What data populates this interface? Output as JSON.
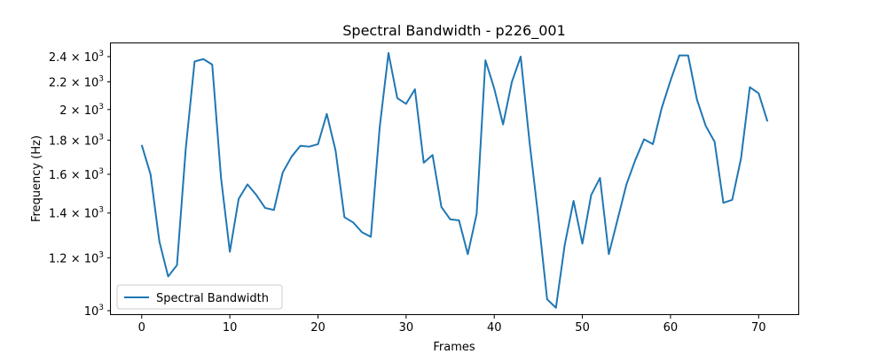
{
  "chart_data": {
    "type": "line",
    "title": "Spectral Bandwidth - p226_001",
    "xlabel": "Frames",
    "ylabel": "Frequency (Hz)",
    "xlim": [
      -3.5,
      74.5
    ],
    "ylim": [
      985,
      2520
    ],
    "yscale": "log",
    "grid": false,
    "legend_position": "lower-left",
    "x_ticks": [
      0,
      10,
      20,
      30,
      40,
      50,
      60,
      70
    ],
    "x_tick_labels": [
      "0",
      "10",
      "20",
      "30",
      "40",
      "50",
      "60",
      "70"
    ],
    "y_ticks": [
      1000,
      1200,
      1400,
      1600,
      1800,
      2000,
      2200,
      2400
    ],
    "y_tick_labels": [
      {
        "mant": "10",
        "exp": "3"
      },
      {
        "mant": "1.2 × 10",
        "exp": "3"
      },
      {
        "mant": "1.4 × 10",
        "exp": "3"
      },
      {
        "mant": "1.6 × 10",
        "exp": "3"
      },
      {
        "mant": "1.8 × 10",
        "exp": "3"
      },
      {
        "mant": "2 × 10",
        "exp": "3"
      },
      {
        "mant": "2.2 × 10",
        "exp": "3"
      },
      {
        "mant": "2.4 × 10",
        "exp": "3"
      }
    ],
    "series": [
      {
        "name": "Spectral Bandwidth",
        "color": "#1f77b4",
        "x": [
          0,
          1,
          2,
          3,
          4,
          5,
          6,
          7,
          8,
          9,
          10,
          11,
          12,
          13,
          14,
          15,
          16,
          17,
          18,
          19,
          20,
          21,
          22,
          23,
          24,
          25,
          26,
          27,
          28,
          29,
          30,
          31,
          32,
          33,
          34,
          35,
          36,
          37,
          38,
          39,
          40,
          41,
          42,
          43,
          44,
          45,
          46,
          47,
          48,
          49,
          50,
          51,
          52,
          53,
          54,
          55,
          56,
          57,
          58,
          59,
          60,
          61,
          62,
          63,
          64,
          65,
          66,
          67,
          68,
          69,
          70,
          71
        ],
        "values": [
          1770,
          1600,
          1270,
          1125,
          1170,
          1750,
          2360,
          2380,
          2335,
          1580,
          1225,
          1470,
          1545,
          1490,
          1425,
          1415,
          1610,
          1700,
          1765,
          1760,
          1775,
          1970,
          1735,
          1380,
          1355,
          1310,
          1290,
          1880,
          2430,
          2080,
          2040,
          2145,
          1665,
          1710,
          1430,
          1370,
          1365,
          1215,
          1395,
          2370,
          2150,
          1900,
          2200,
          2400,
          1790,
          1380,
          1040,
          1010,
          1255,
          1460,
          1260,
          1490,
          1580,
          1215,
          1370,
          1545,
          1680,
          1805,
          1775,
          2010,
          2210,
          2410,
          2410,
          2070,
          1890,
          1790,
          1450,
          1465,
          1690,
          2160,
          2115,
          1920
        ]
      }
    ]
  }
}
